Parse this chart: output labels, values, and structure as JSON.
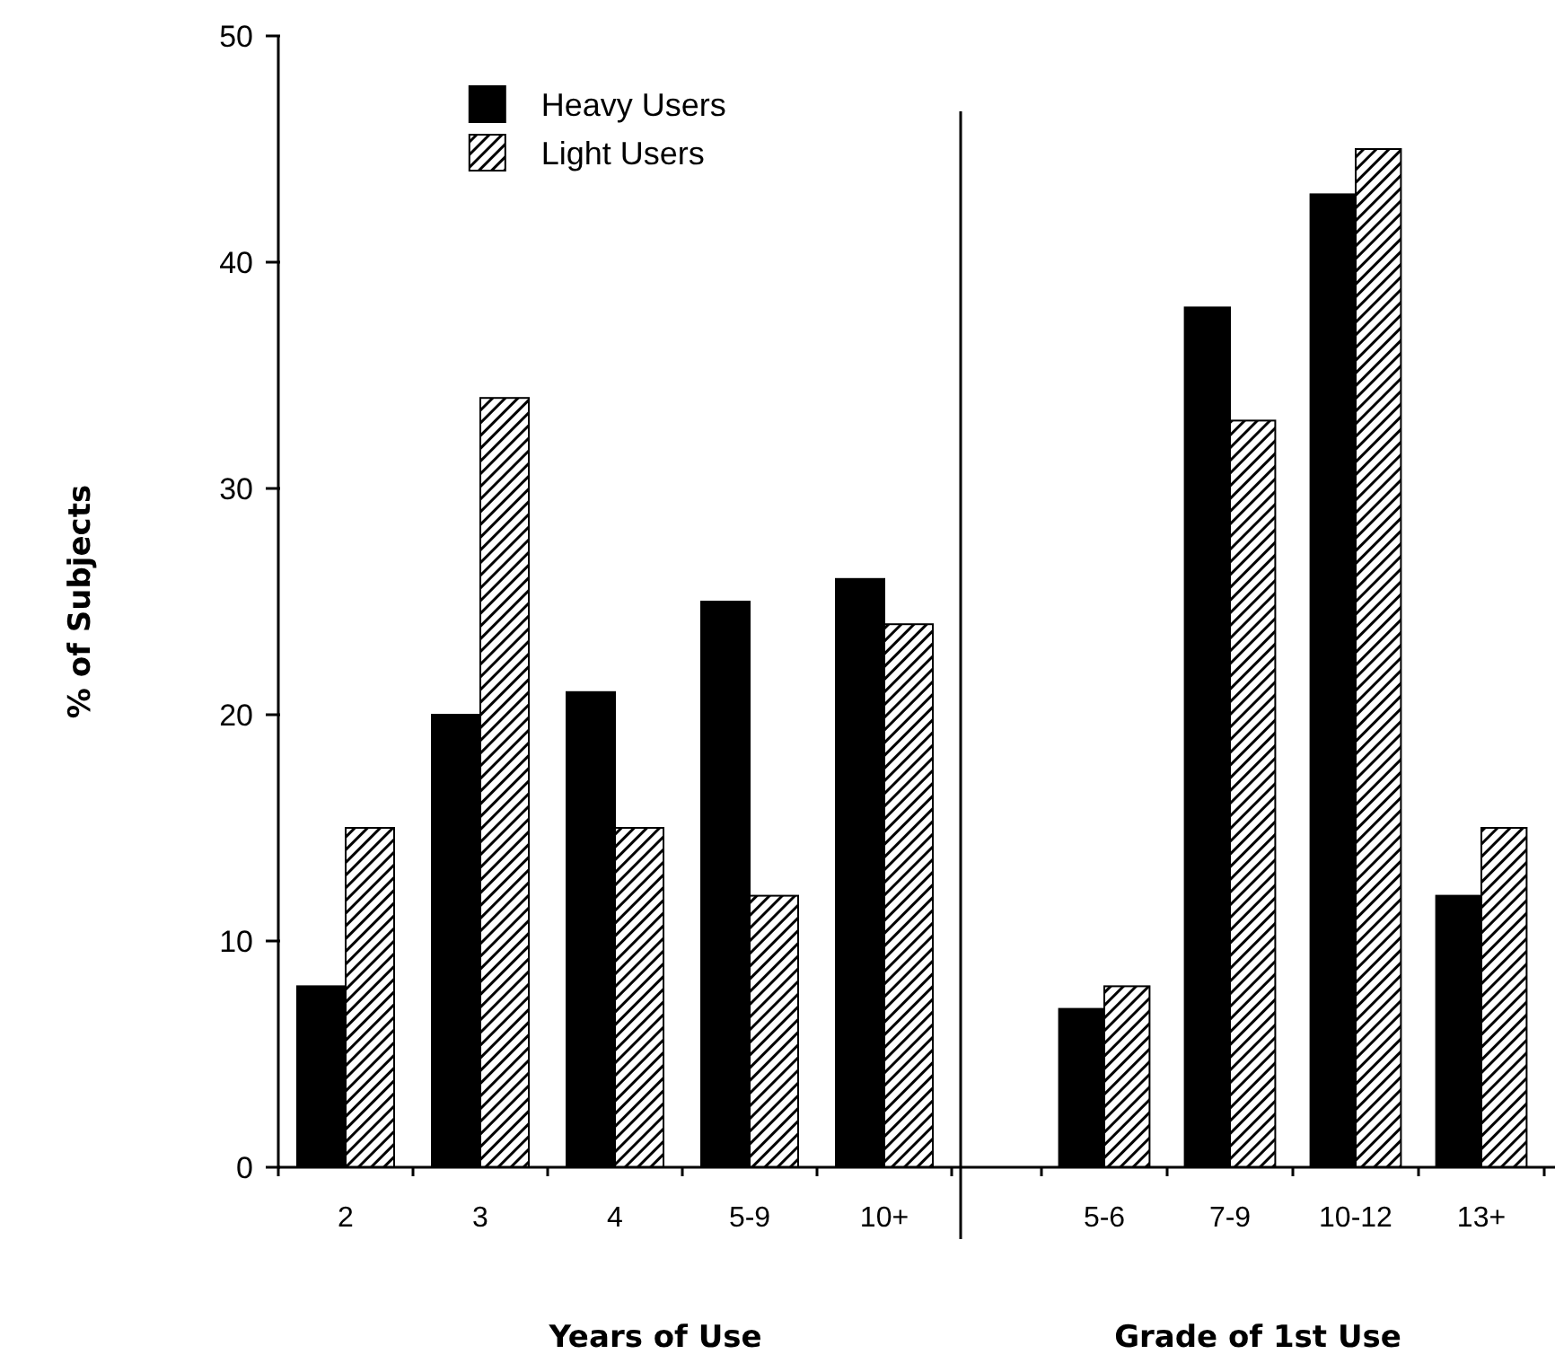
{
  "chart_data": [
    {
      "type": "bar",
      "xlabel": "Years of Use",
      "ylabel": "% of Subjects",
      "categories": [
        "2",
        "3",
        "4",
        "5-9",
        "10+"
      ],
      "series": [
        {
          "name": "Heavy Users",
          "color": "#000000",
          "values": [
            8,
            20,
            21,
            25,
            26
          ]
        },
        {
          "name": "Light Users",
          "color": "#000000",
          "values": [
            15,
            34,
            15,
            12,
            24
          ]
        }
      ],
      "ylim": [
        0,
        50
      ],
      "yticks": [
        0,
        10,
        20,
        30,
        40,
        50
      ],
      "legend": "top"
    },
    {
      "type": "bar",
      "xlabel": "Grade of 1st Use",
      "categories": [
        "5-6",
        "7-9",
        "10-12",
        "13+"
      ],
      "series": [
        {
          "color": "#000000",
          "values": [
            7,
            38,
            43,
            12
          ]
        },
        {
          "color": "#000000",
          "values": [
            8,
            33,
            45,
            15
          ]
        }
      ],
      "ylim": [
        0,
        50
      ],
      "yticks": [
        0,
        10,
        20,
        30,
        40,
        50
      ],
      "tick_labels": "x"
    }
  ]
}
